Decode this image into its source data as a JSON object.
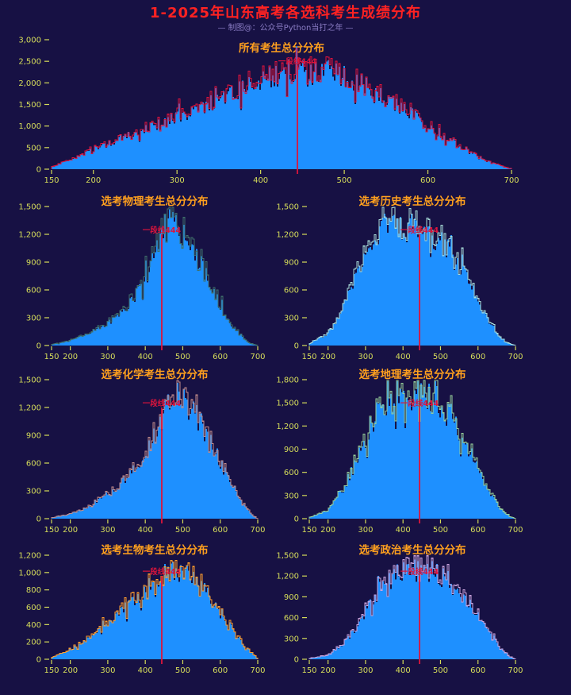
{
  "figure": {
    "title": "1-2025年山东高考各选科考生成绩分布",
    "subtitle": "— 制图@：公众号Python当打之年 —",
    "colors": {
      "background": "#171144",
      "title": "#ff2222",
      "subtitle": "#8a7cc4",
      "tick_labels": "#d6dd5a",
      "chart_titles": "#ffa01e",
      "bar_fill": "#1e90ff",
      "marker_line": "#dc143c"
    }
  },
  "chart_data": [
    {
      "type": "bar",
      "key": "all",
      "title": "所有考生总分分布",
      "edge_color": "#dc143c",
      "xlabel": "",
      "ylabel": "",
      "xlim": [
        150,
        700
      ],
      "ylim": [
        0,
        3000
      ],
      "xticks": [
        150,
        200,
        300,
        400,
        500,
        600,
        700
      ],
      "yticks": [
        0,
        500,
        1000,
        1500,
        2000,
        2500,
        3000
      ],
      "marker": {
        "x": 444,
        "label": "一段线444",
        "color": "#dc143c"
      },
      "x": [
        150,
        175,
        200,
        225,
        250,
        275,
        300,
        325,
        350,
        375,
        400,
        425,
        450,
        475,
        500,
        525,
        550,
        575,
        600,
        625,
        650,
        675,
        700
      ],
      "values": [
        60,
        230,
        440,
        640,
        830,
        1010,
        1180,
        1390,
        1610,
        1820,
        2030,
        2200,
        2310,
        2330,
        2190,
        1960,
        1670,
        1360,
        1040,
        700,
        400,
        150,
        10
      ]
    },
    {
      "type": "bar",
      "key": "physics",
      "title": "选考物理考生总分分布",
      "edge_color": "#3f6f6a",
      "xlabel": "",
      "ylabel": "",
      "xlim": [
        150,
        700
      ],
      "ylim": [
        0,
        1500
      ],
      "xticks": [
        150,
        200,
        300,
        400,
        500,
        600,
        700
      ],
      "yticks": [
        0,
        300,
        600,
        900,
        1200,
        1500
      ],
      "marker": {
        "x": 444,
        "label": "一段线444",
        "color": "#dc143c"
      },
      "x": [
        150,
        200,
        250,
        300,
        330,
        360,
        390,
        410,
        430,
        445,
        460,
        475,
        490,
        510,
        530,
        550,
        575,
        600,
        630,
        660,
        680,
        700
      ],
      "values": [
        10,
        55,
        125,
        240,
        330,
        460,
        640,
        790,
        1010,
        1200,
        1310,
        1320,
        1270,
        1160,
        1020,
        870,
        650,
        430,
        220,
        80,
        25,
        0
      ]
    },
    {
      "type": "bar",
      "key": "history",
      "title": "选考历史考生总分分布",
      "edge_color": "#a8dcd9",
      "xlabel": "",
      "ylabel": "",
      "xlim": [
        150,
        700
      ],
      "ylim": [
        0,
        1500
      ],
      "xticks": [
        150,
        200,
        300,
        400,
        500,
        600,
        700
      ],
      "yticks": [
        0,
        300,
        600,
        900,
        1200,
        1500
      ],
      "marker": {
        "x": 444,
        "label": "一段线444",
        "color": "#dc143c"
      },
      "x": [
        150,
        200,
        230,
        260,
        290,
        320,
        350,
        380,
        410,
        440,
        470,
        500,
        530,
        560,
        590,
        620,
        650,
        675,
        700
      ],
      "values": [
        15,
        130,
        300,
        600,
        950,
        1180,
        1270,
        1290,
        1270,
        1240,
        1190,
        1100,
        970,
        790,
        560,
        330,
        120,
        35,
        0
      ]
    },
    {
      "type": "bar",
      "key": "chemistry",
      "title": "选考化学考生总分分布",
      "edge_color": "#c08a8a",
      "xlabel": "",
      "ylabel": "",
      "xlim": [
        150,
        700
      ],
      "ylim": [
        0,
        1500
      ],
      "xticks": [
        150,
        200,
        300,
        400,
        500,
        600,
        700
      ],
      "yticks": [
        0,
        300,
        600,
        900,
        1200,
        1500
      ],
      "marker": {
        "x": 444,
        "label": "一段线444",
        "color": "#dc143c"
      },
      "x": [
        150,
        200,
        250,
        300,
        330,
        360,
        390,
        420,
        445,
        465,
        485,
        505,
        525,
        550,
        575,
        600,
        630,
        660,
        685,
        700
      ],
      "values": [
        10,
        50,
        130,
        270,
        360,
        480,
        640,
        850,
        1060,
        1230,
        1300,
        1270,
        1180,
        1020,
        830,
        620,
        370,
        160,
        40,
        0
      ]
    },
    {
      "type": "bar",
      "key": "geography",
      "title": "选考地理考生总分分布",
      "edge_color": "#97cf9a",
      "xlabel": "",
      "ylabel": "",
      "xlim": [
        150,
        700
      ],
      "ylim": [
        0,
        1800
      ],
      "xticks": [
        150,
        200,
        300,
        400,
        500,
        600,
        700
      ],
      "yticks": [
        0,
        300,
        600,
        900,
        1200,
        1500,
        1800
      ],
      "marker": {
        "x": 444,
        "label": "一段线444",
        "color": "#dc143c"
      },
      "x": [
        150,
        200,
        240,
        270,
        300,
        330,
        360,
        390,
        420,
        450,
        480,
        510,
        540,
        570,
        600,
        630,
        660,
        685,
        700
      ],
      "values": [
        15,
        110,
        380,
        680,
        1050,
        1350,
        1520,
        1590,
        1610,
        1600,
        1560,
        1450,
        1240,
        960,
        640,
        350,
        130,
        30,
        0
      ]
    },
    {
      "type": "bar",
      "key": "biology",
      "title": "选考生物考生总分分布",
      "edge_color": "#ff9d2e",
      "xlabel": "",
      "ylabel": "",
      "xlim": [
        150,
        700
      ],
      "ylim": [
        0,
        1200
      ],
      "xticks": [
        150,
        200,
        300,
        400,
        500,
        600,
        700
      ],
      "yticks": [
        0,
        200,
        400,
        600,
        800,
        1000,
        1200
      ],
      "marker": {
        "x": 444,
        "label": "一段线444",
        "color": "#dc143c"
      },
      "x": [
        150,
        200,
        250,
        300,
        350,
        400,
        430,
        455,
        475,
        495,
        515,
        535,
        560,
        585,
        610,
        640,
        670,
        700
      ],
      "values": [
        20,
        110,
        250,
        420,
        600,
        790,
        900,
        990,
        1020,
        1000,
        950,
        880,
        770,
        630,
        480,
        300,
        130,
        10
      ]
    },
    {
      "type": "bar",
      "key": "politics",
      "title": "选考政治考生总分分布",
      "edge_color": "#c9a3dd",
      "xlabel": "",
      "ylabel": "",
      "xlim": [
        150,
        700
      ],
      "ylim": [
        0,
        1500
      ],
      "xticks": [
        150,
        200,
        300,
        400,
        500,
        600,
        700
      ],
      "yticks": [
        0,
        300,
        600,
        900,
        1200,
        1500
      ],
      "marker": {
        "x": 444,
        "label": "一段线444",
        "color": "#dc143c"
      },
      "x": [
        150,
        200,
        240,
        270,
        300,
        330,
        360,
        390,
        420,
        450,
        480,
        510,
        540,
        570,
        600,
        630,
        660,
        685,
        700
      ],
      "values": [
        10,
        60,
        220,
        420,
        700,
        950,
        1130,
        1230,
        1270,
        1270,
        1240,
        1180,
        1060,
        880,
        640,
        380,
        160,
        40,
        0
      ]
    }
  ]
}
